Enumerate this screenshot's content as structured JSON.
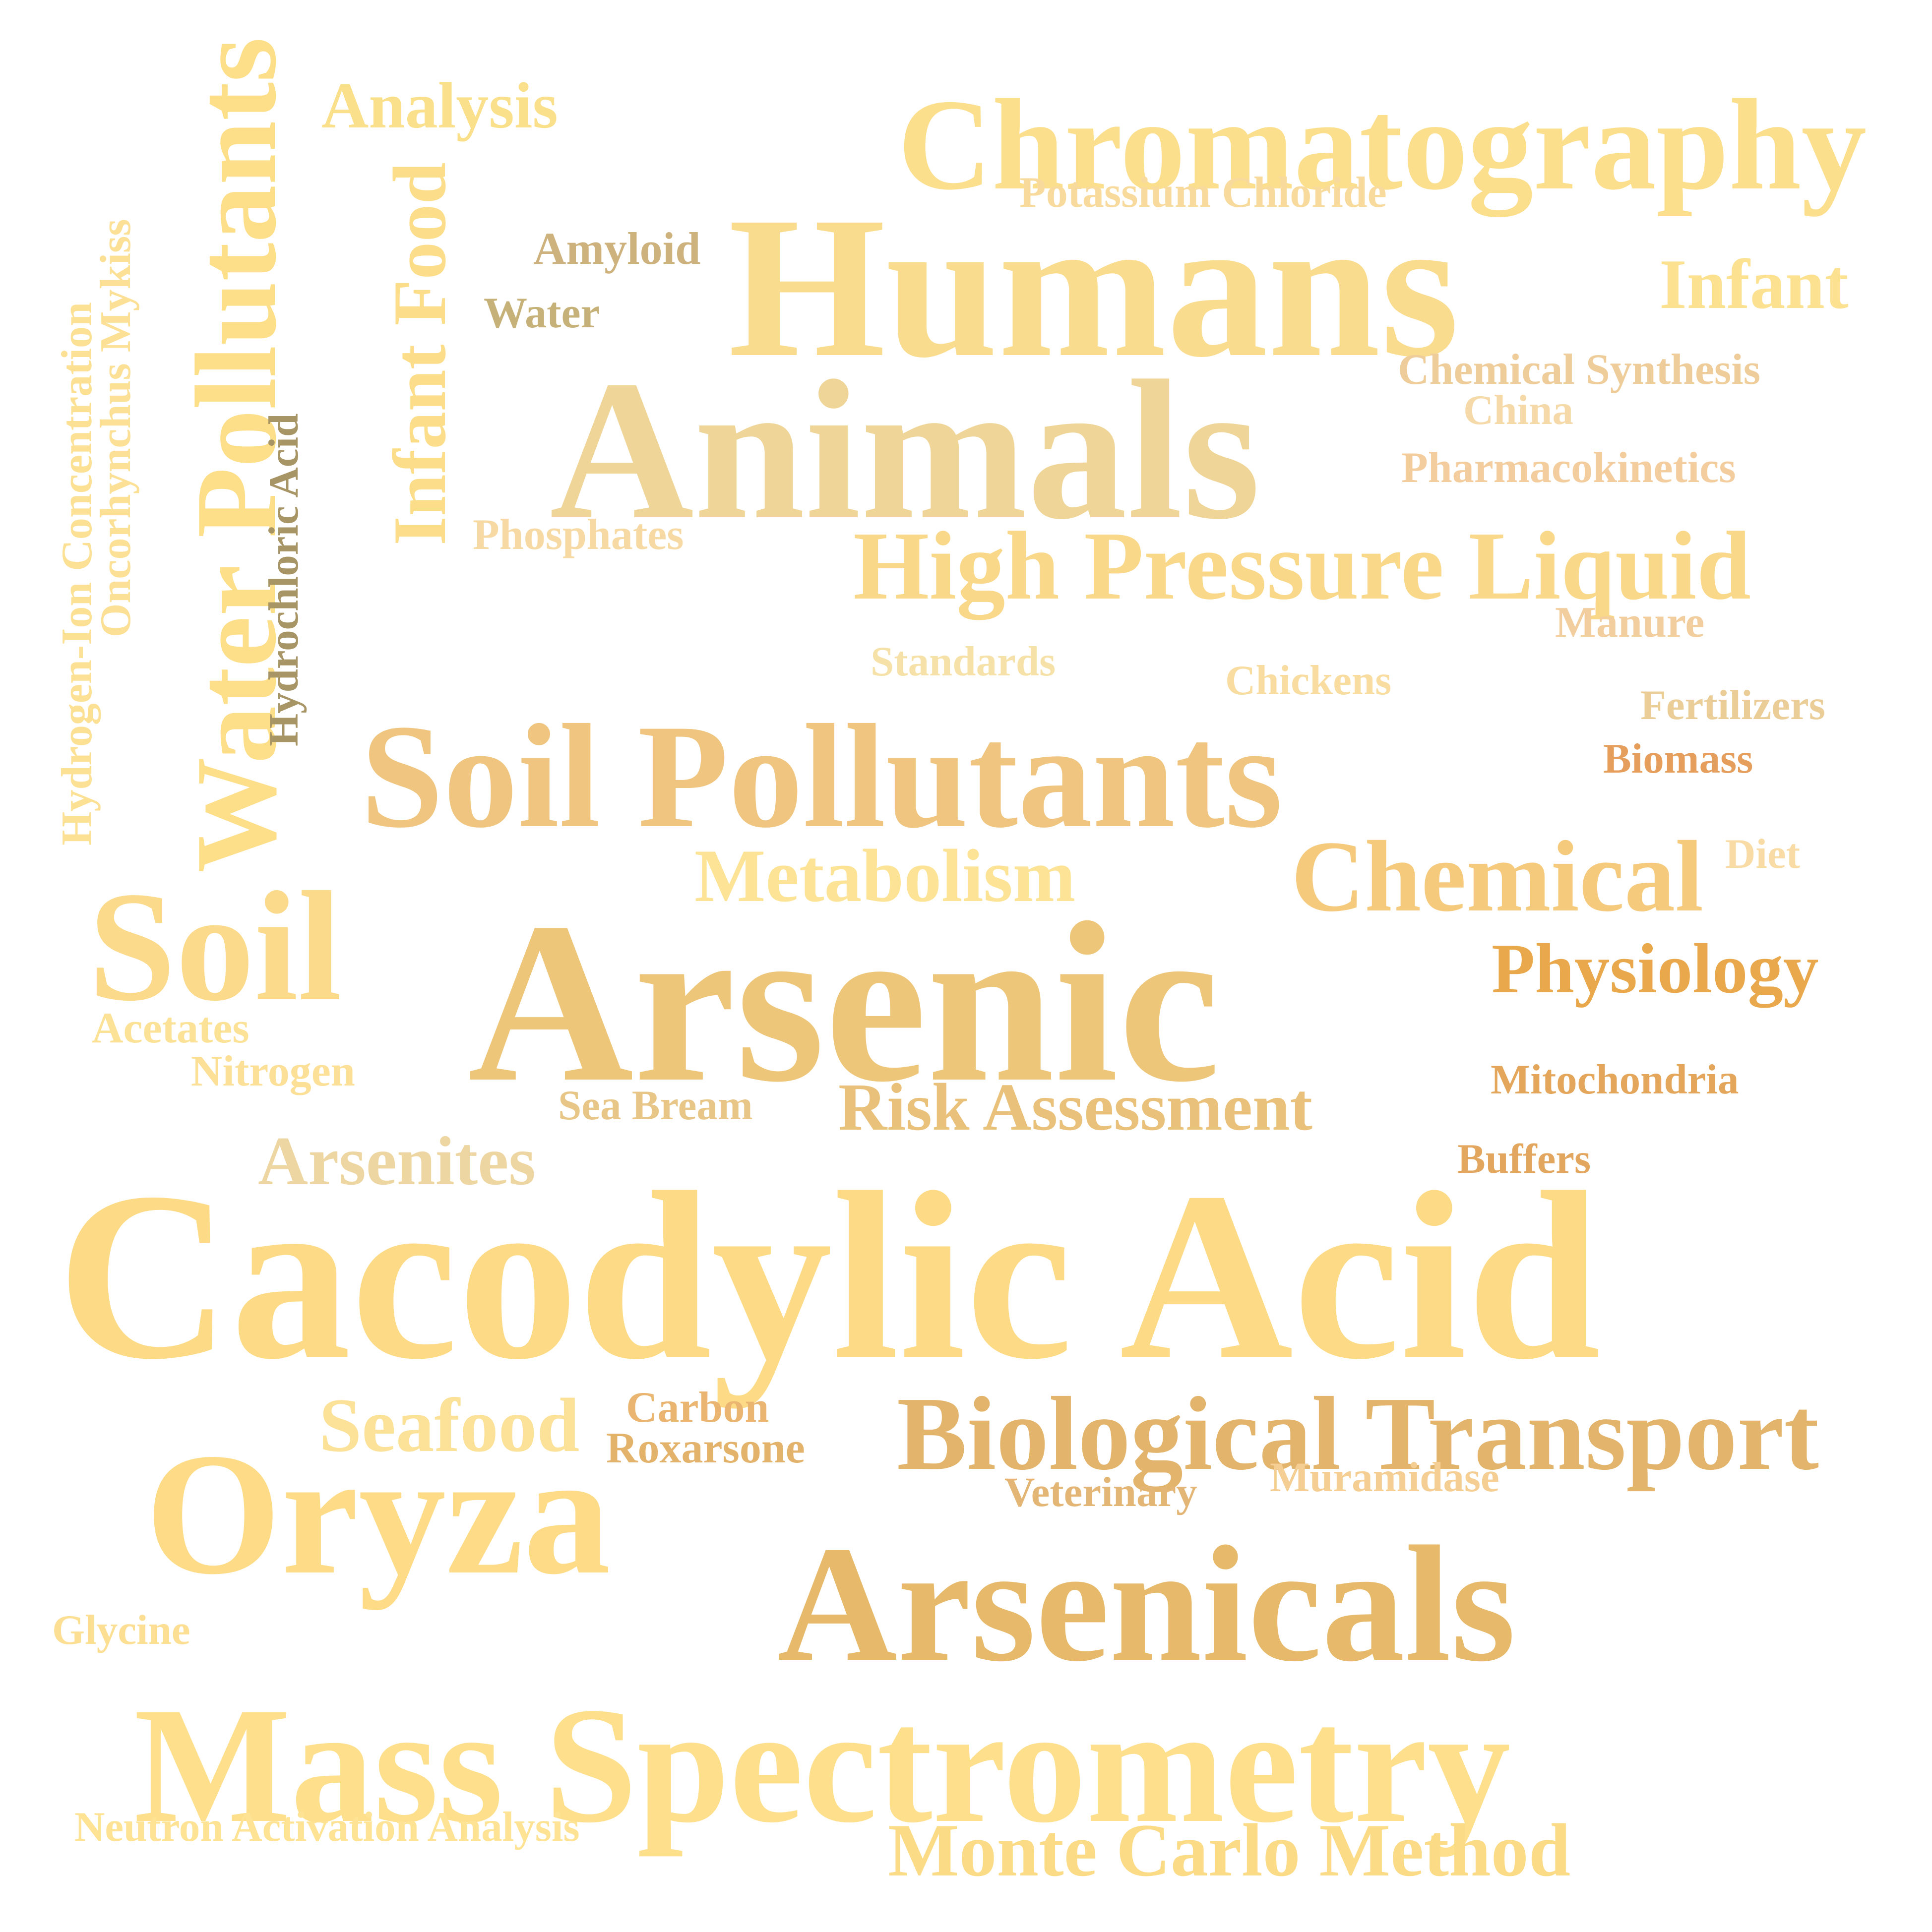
{
  "words": [
    {
      "id": "cacodylic-acid",
      "text": "Cacodylic Acid",
      "color": "#FDDB86"
    },
    {
      "id": "arsenic",
      "text": "Arsenic",
      "color": "#EEC679"
    },
    {
      "id": "humans",
      "text": "Humans",
      "color": "#F9DC8E"
    },
    {
      "id": "animals",
      "text": "Animals",
      "color": "#EFD597"
    },
    {
      "id": "mass-spectrometry",
      "text": "Mass Spectrometry",
      "color": "#FDDF8C"
    },
    {
      "id": "arsenicals",
      "text": "Arsenicals",
      "color": "#E7BA6B"
    },
    {
      "id": "oryza",
      "text": "Oryza",
      "color": "#FEDC87"
    },
    {
      "id": "soil-pollutants",
      "text": "Soil Pollutants",
      "color": "#EFC57F"
    },
    {
      "id": "chromatography",
      "text": "Chromatography",
      "color": "#FBDF8D"
    },
    {
      "id": "soil",
      "text": "Soil",
      "color": "#FBDA8B"
    },
    {
      "id": "biological-transport",
      "text": "Biological Transport",
      "color": "#E3B46C"
    },
    {
      "id": "high-pressure-liquid",
      "text": "High Pressure Liquid",
      "color": "#F9D889"
    },
    {
      "id": "chemical",
      "text": "Chemical",
      "color": "#F6CA7C"
    },
    {
      "id": "water-pollutants",
      "text": "Water Pollutants",
      "color": "#FDDF89"
    },
    {
      "id": "risk-assessment",
      "text": "Risk Assessment",
      "color": "#E9C17A"
    },
    {
      "id": "monte-carlo-method",
      "text": "Monte Carlo Method",
      "color": "#FBDB86"
    },
    {
      "id": "metabolism",
      "text": "Metabolism",
      "color": "#FCE395"
    },
    {
      "id": "arsenites",
      "text": "Arsenites",
      "color": "#EED6A2"
    },
    {
      "id": "seafood",
      "text": "Seafood",
      "color": "#FBE298"
    },
    {
      "id": "physiology",
      "text": "Physiology",
      "color": "#E9A84B"
    },
    {
      "id": "infant",
      "text": "Infant",
      "color": "#FCE191"
    },
    {
      "id": "analysis",
      "text": "Analysis",
      "color": "#FBE08C"
    },
    {
      "id": "infant-food",
      "text": "Infant Food",
      "color": "#FCDD8A"
    },
    {
      "id": "potassium-chloride",
      "text": "Potassium Chloride",
      "color": "#F8DB9C"
    },
    {
      "id": "amyloid",
      "text": "Amyloid",
      "color": "#CDB27E"
    },
    {
      "id": "water",
      "text": "Water",
      "color": "#C6B279"
    },
    {
      "id": "chemical-synthesis",
      "text": "Chemical Synthesis",
      "color": "#EFCD9B"
    },
    {
      "id": "china",
      "text": "China",
      "color": "#F6D9A8"
    },
    {
      "id": "pharmacokinetics",
      "text": "Pharmacokinetics",
      "color": "#F3CD9E"
    },
    {
      "id": "phosphates",
      "text": "Phosphates",
      "color": "#F6D9A3"
    },
    {
      "id": "manure",
      "text": "Manure",
      "color": "#F2CD9E"
    },
    {
      "id": "standards",
      "text": "Standards",
      "color": "#F6E2A8"
    },
    {
      "id": "chickens",
      "text": "Chickens",
      "color": "#F8DCA0"
    },
    {
      "id": "fertilizers",
      "text": "Fertilizers",
      "color": "#EBCD98"
    },
    {
      "id": "biomass",
      "text": "Biomass",
      "color": "#E69E5C"
    },
    {
      "id": "diet",
      "text": "Diet",
      "color": "#F8DBA5"
    },
    {
      "id": "hydrogen-ion-concentration",
      "text": "Hydrogen-Ion Concentration",
      "color": "#FCE194"
    },
    {
      "id": "oncorhynchus-mykiss",
      "text": "Oncorhynchus Mykiss",
      "color": "#FCE096"
    },
    {
      "id": "hydrochloric-acid",
      "text": "Hydrochloric Acid",
      "color": "#A89566"
    },
    {
      "id": "acetates",
      "text": "Acetates",
      "color": "#FCE296"
    },
    {
      "id": "nitrogen",
      "text": "Nitrogen",
      "color": "#FCE098"
    },
    {
      "id": "sea-bream",
      "text": "Sea Bream",
      "color": "#E8C688"
    },
    {
      "id": "mitochondria",
      "text": "Mitochondria",
      "color": "#E4A65B"
    },
    {
      "id": "buffers",
      "text": "Buffers",
      "color": "#E3A65E"
    },
    {
      "id": "carbon",
      "text": "Carbon",
      "color": "#E9B570"
    },
    {
      "id": "roxarsone",
      "text": "Roxarsone",
      "color": "#E3B36C"
    },
    {
      "id": "veterinary",
      "text": "Veterinary",
      "color": "#E3B676"
    },
    {
      "id": "muramidase",
      "text": "Muramidase",
      "color": "#F4CE93"
    },
    {
      "id": "glycine",
      "text": "Glycine",
      "color": "#FCDF92"
    },
    {
      "id": "neutron-activation-analysis",
      "text": "Neutron Activation Analysis",
      "color": "#FDE393"
    }
  ]
}
